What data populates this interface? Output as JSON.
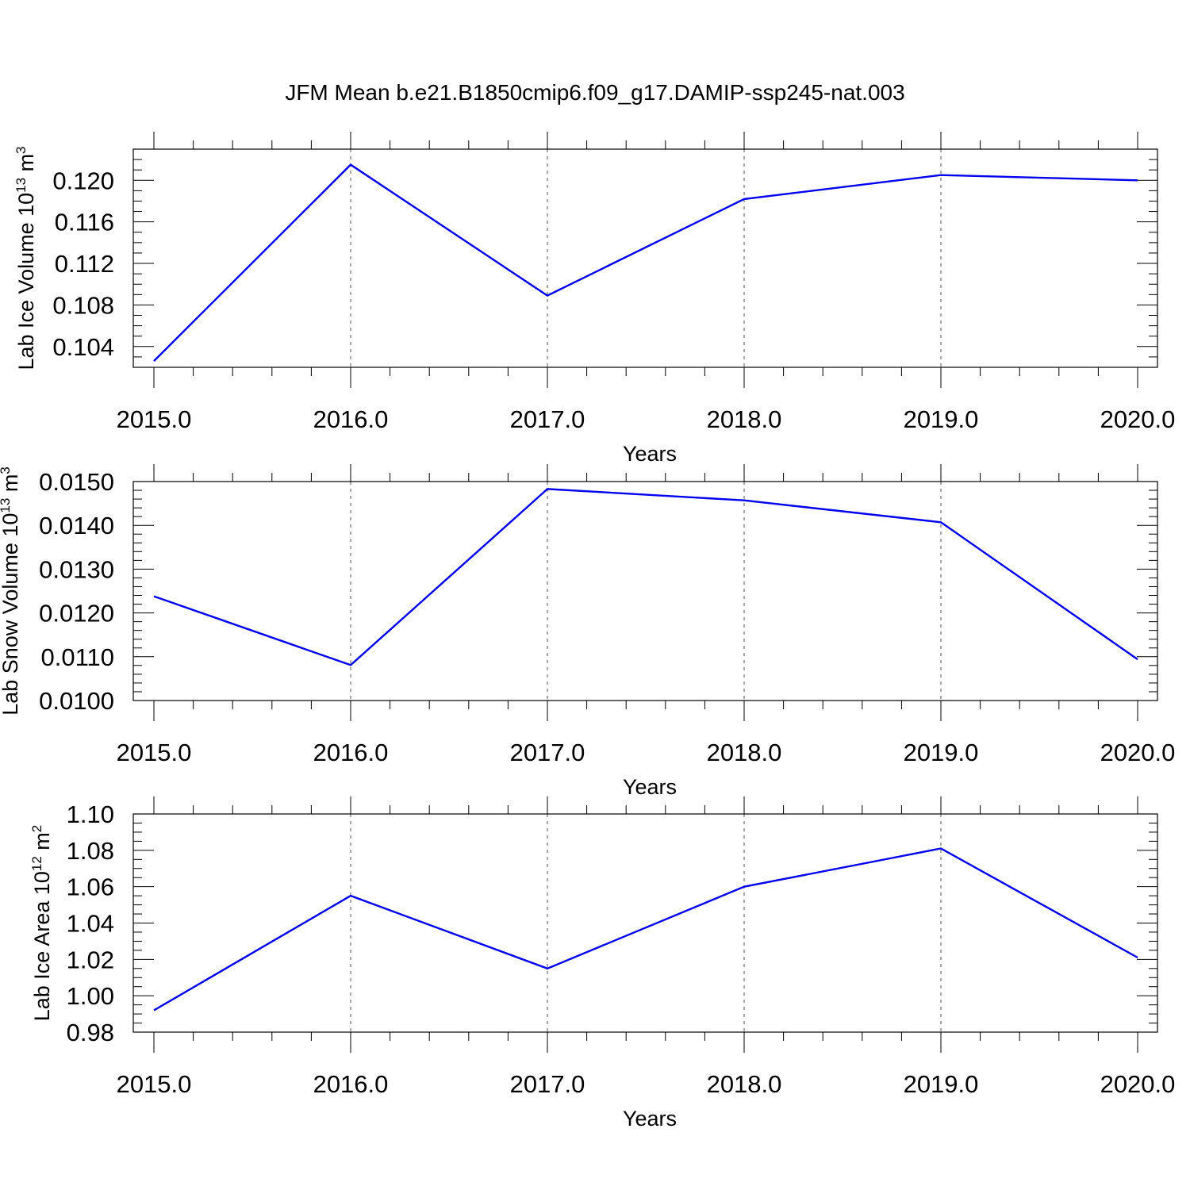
{
  "title": "JFM Mean b.e21.B1850cmip6.f09_g17.DAMIP-ssp245-nat.003",
  "colors": {
    "series": "#0000ee"
  },
  "chart_data": [
    {
      "type": "line",
      "ylabel": {
        "text": "Lab Ice Volume 10",
        "exp": "13",
        "unit": " m",
        "unit_exp": "3"
      },
      "xlabel": "Years",
      "x": [
        2015,
        2016,
        2017,
        2018,
        2019,
        2020
      ],
      "y": [
        0.1026,
        0.1215,
        0.1089,
        0.1182,
        0.1205,
        0.12
      ],
      "xlim": [
        2015,
        2020.1
      ],
      "ylim": [
        0.102,
        0.123
      ],
      "yticks": [
        0.104,
        0.108,
        0.112,
        0.116,
        0.12
      ],
      "ytick_labels": [
        "0.104",
        "0.108",
        "0.112",
        "0.116",
        "0.120"
      ],
      "yminor_step": 0.001,
      "xticks": [
        2015,
        2016,
        2017,
        2018,
        2019,
        2020
      ],
      "xtick_labels": [
        "2015.0",
        "2016.0",
        "2017.0",
        "2018.0",
        "2019.0",
        "2020.0"
      ],
      "xminor_step": 0.2,
      "grid_x": true
    },
    {
      "type": "line",
      "ylabel": {
        "text": "Lab Snow Volume 10",
        "exp": "13",
        "unit": " m",
        "unit_exp": "3"
      },
      "xlabel": "Years",
      "x": [
        2015,
        2016,
        2017,
        2018,
        2019,
        2020
      ],
      "y": [
        0.01238,
        0.01081,
        0.01483,
        0.01457,
        0.01407,
        0.01094
      ],
      "xlim": [
        2015,
        2020.1
      ],
      "ylim": [
        0.01,
        0.015
      ],
      "yticks": [
        0.01,
        0.011,
        0.012,
        0.013,
        0.014,
        0.015
      ],
      "ytick_labels": [
        "0.0100",
        "0.0110",
        "0.0120",
        "0.0130",
        "0.0140",
        "0.0150"
      ],
      "yminor_step": 0.0002,
      "xticks": [
        2015,
        2016,
        2017,
        2018,
        2019,
        2020
      ],
      "xtick_labels": [
        "2015.0",
        "2016.0",
        "2017.0",
        "2018.0",
        "2019.0",
        "2020.0"
      ],
      "xminor_step": 0.2,
      "grid_x": true
    },
    {
      "type": "line",
      "ylabel": {
        "text": "Lab Ice Area 10",
        "exp": "12",
        "unit": " m",
        "unit_exp": "2"
      },
      "xlabel": "Years",
      "x": [
        2015,
        2016,
        2017,
        2018,
        2019,
        2020
      ],
      "y": [
        0.992,
        1.055,
        1.015,
        1.06,
        1.081,
        1.021
      ],
      "xlim": [
        2015,
        2020.1
      ],
      "ylim": [
        0.98,
        1.1
      ],
      "yticks": [
        0.98,
        1.0,
        1.02,
        1.04,
        1.06,
        1.08,
        1.1
      ],
      "ytick_labels": [
        "0.98",
        "1.00",
        "1.02",
        "1.04",
        "1.06",
        "1.08",
        "1.10"
      ],
      "yminor_step": 0.005,
      "xticks": [
        2015,
        2016,
        2017,
        2018,
        2019,
        2020
      ],
      "xtick_labels": [
        "2015.0",
        "2016.0",
        "2017.0",
        "2018.0",
        "2019.0",
        "2020.0"
      ],
      "xminor_step": 0.2,
      "grid_x": true
    }
  ]
}
